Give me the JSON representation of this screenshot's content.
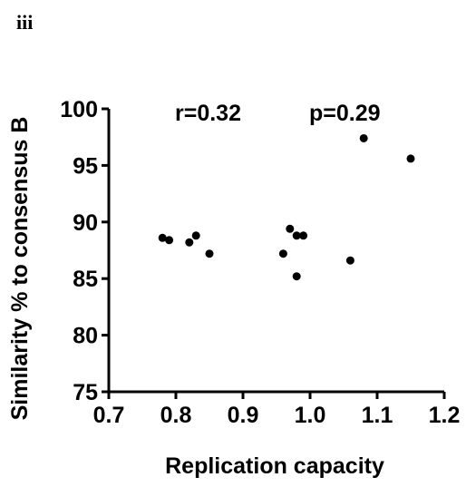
{
  "panel_label": "iii",
  "chart_data": {
    "type": "scatter",
    "xlabel": "Replication capacity",
    "ylabel": "Similarity % to consensus B",
    "xlim": [
      0.7,
      1.2
    ],
    "ylim": [
      75,
      100
    ],
    "x_ticks": [
      "0.7",
      "0.8",
      "0.9",
      "1.0",
      "1.1",
      "1.2"
    ],
    "y_ticks": [
      "75",
      "80",
      "85",
      "90",
      "95",
      "100"
    ],
    "annotations": [
      "r=0.32",
      "p=0.29"
    ],
    "grid": false,
    "points": [
      {
        "x": 0.78,
        "y": 88.6
      },
      {
        "x": 0.79,
        "y": 88.4
      },
      {
        "x": 0.82,
        "y": 88.2
      },
      {
        "x": 0.83,
        "y": 88.8
      },
      {
        "x": 0.85,
        "y": 87.2
      },
      {
        "x": 0.96,
        "y": 87.2
      },
      {
        "x": 0.97,
        "y": 89.4
      },
      {
        "x": 0.98,
        "y": 88.8
      },
      {
        "x": 0.98,
        "y": 85.2
      },
      {
        "x": 0.99,
        "y": 88.8
      },
      {
        "x": 1.06,
        "y": 86.6
      },
      {
        "x": 1.08,
        "y": 97.4
      },
      {
        "x": 1.15,
        "y": 95.6
      }
    ]
  }
}
